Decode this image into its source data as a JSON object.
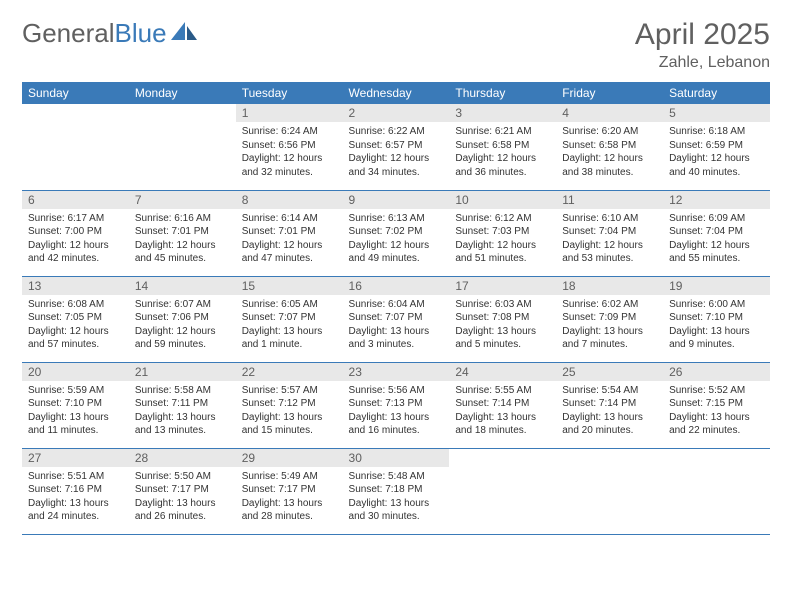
{
  "logo": {
    "text1": "General",
    "text2": "Blue"
  },
  "title": "April 2025",
  "location": "Zahle, Lebanon",
  "colors": {
    "header_bg": "#3a7ab8",
    "header_fg": "#ffffff",
    "daynum_bg": "#e8e8e8",
    "daynum_fg": "#606060",
    "border": "#3a7ab8",
    "text": "#333333",
    "title_fg": "#606060",
    "logo_blue": "#3a7ab8"
  },
  "weekdays": [
    "Sunday",
    "Monday",
    "Tuesday",
    "Wednesday",
    "Thursday",
    "Friday",
    "Saturday"
  ],
  "weeks": [
    [
      null,
      null,
      {
        "n": "1",
        "sr": "6:24 AM",
        "ss": "6:56 PM",
        "dl": "12 hours and 32 minutes."
      },
      {
        "n": "2",
        "sr": "6:22 AM",
        "ss": "6:57 PM",
        "dl": "12 hours and 34 minutes."
      },
      {
        "n": "3",
        "sr": "6:21 AM",
        "ss": "6:58 PM",
        "dl": "12 hours and 36 minutes."
      },
      {
        "n": "4",
        "sr": "6:20 AM",
        "ss": "6:58 PM",
        "dl": "12 hours and 38 minutes."
      },
      {
        "n": "5",
        "sr": "6:18 AM",
        "ss": "6:59 PM",
        "dl": "12 hours and 40 minutes."
      }
    ],
    [
      {
        "n": "6",
        "sr": "6:17 AM",
        "ss": "7:00 PM",
        "dl": "12 hours and 42 minutes."
      },
      {
        "n": "7",
        "sr": "6:16 AM",
        "ss": "7:01 PM",
        "dl": "12 hours and 45 minutes."
      },
      {
        "n": "8",
        "sr": "6:14 AM",
        "ss": "7:01 PM",
        "dl": "12 hours and 47 minutes."
      },
      {
        "n": "9",
        "sr": "6:13 AM",
        "ss": "7:02 PM",
        "dl": "12 hours and 49 minutes."
      },
      {
        "n": "10",
        "sr": "6:12 AM",
        "ss": "7:03 PM",
        "dl": "12 hours and 51 minutes."
      },
      {
        "n": "11",
        "sr": "6:10 AM",
        "ss": "7:04 PM",
        "dl": "12 hours and 53 minutes."
      },
      {
        "n": "12",
        "sr": "6:09 AM",
        "ss": "7:04 PM",
        "dl": "12 hours and 55 minutes."
      }
    ],
    [
      {
        "n": "13",
        "sr": "6:08 AM",
        "ss": "7:05 PM",
        "dl": "12 hours and 57 minutes."
      },
      {
        "n": "14",
        "sr": "6:07 AM",
        "ss": "7:06 PM",
        "dl": "12 hours and 59 minutes."
      },
      {
        "n": "15",
        "sr": "6:05 AM",
        "ss": "7:07 PM",
        "dl": "13 hours and 1 minute."
      },
      {
        "n": "16",
        "sr": "6:04 AM",
        "ss": "7:07 PM",
        "dl": "13 hours and 3 minutes."
      },
      {
        "n": "17",
        "sr": "6:03 AM",
        "ss": "7:08 PM",
        "dl": "13 hours and 5 minutes."
      },
      {
        "n": "18",
        "sr": "6:02 AM",
        "ss": "7:09 PM",
        "dl": "13 hours and 7 minutes."
      },
      {
        "n": "19",
        "sr": "6:00 AM",
        "ss": "7:10 PM",
        "dl": "13 hours and 9 minutes."
      }
    ],
    [
      {
        "n": "20",
        "sr": "5:59 AM",
        "ss": "7:10 PM",
        "dl": "13 hours and 11 minutes."
      },
      {
        "n": "21",
        "sr": "5:58 AM",
        "ss": "7:11 PM",
        "dl": "13 hours and 13 minutes."
      },
      {
        "n": "22",
        "sr": "5:57 AM",
        "ss": "7:12 PM",
        "dl": "13 hours and 15 minutes."
      },
      {
        "n": "23",
        "sr": "5:56 AM",
        "ss": "7:13 PM",
        "dl": "13 hours and 16 minutes."
      },
      {
        "n": "24",
        "sr": "5:55 AM",
        "ss": "7:14 PM",
        "dl": "13 hours and 18 minutes."
      },
      {
        "n": "25",
        "sr": "5:54 AM",
        "ss": "7:14 PM",
        "dl": "13 hours and 20 minutes."
      },
      {
        "n": "26",
        "sr": "5:52 AM",
        "ss": "7:15 PM",
        "dl": "13 hours and 22 minutes."
      }
    ],
    [
      {
        "n": "27",
        "sr": "5:51 AM",
        "ss": "7:16 PM",
        "dl": "13 hours and 24 minutes."
      },
      {
        "n": "28",
        "sr": "5:50 AM",
        "ss": "7:17 PM",
        "dl": "13 hours and 26 minutes."
      },
      {
        "n": "29",
        "sr": "5:49 AM",
        "ss": "7:17 PM",
        "dl": "13 hours and 28 minutes."
      },
      {
        "n": "30",
        "sr": "5:48 AM",
        "ss": "7:18 PM",
        "dl": "13 hours and 30 minutes."
      },
      null,
      null,
      null
    ]
  ],
  "labels": {
    "sunrise": "Sunrise: ",
    "sunset": "Sunset: ",
    "daylight": "Daylight: "
  }
}
